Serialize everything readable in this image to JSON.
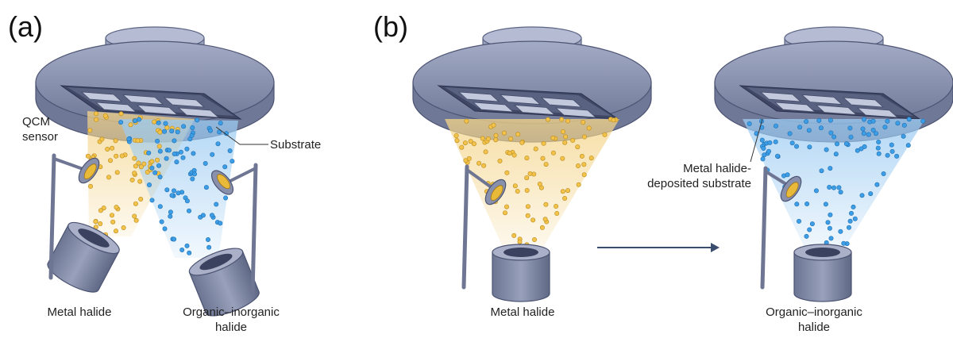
{
  "panels": {
    "a": {
      "letter": "(a)",
      "labels": {
        "qcm_line1": "QCM",
        "qcm_line2": "sensor",
        "substrate": "Substrate",
        "source_left": "Metal halide",
        "source_right_line1": "Organic–inorganic",
        "source_right_line2": "halide"
      }
    },
    "b": {
      "letter": "(b)",
      "labels": {
        "source_left": "Metal halide",
        "deposited_line1": "Metal halide-",
        "deposited_line2": "deposited substrate",
        "source_right_line1": "Organic–inorganic",
        "source_right_line2": "halide"
      }
    }
  },
  "colors": {
    "metal_halide_particle": "#f2c24a",
    "organic_halide_particle": "#3d9ee6",
    "plume_yellow": "#f6dc9a",
    "plume_blue": "#a9d2f4",
    "chamber_metal": "#8f98b3",
    "arrow": "#3b4d6e"
  }
}
